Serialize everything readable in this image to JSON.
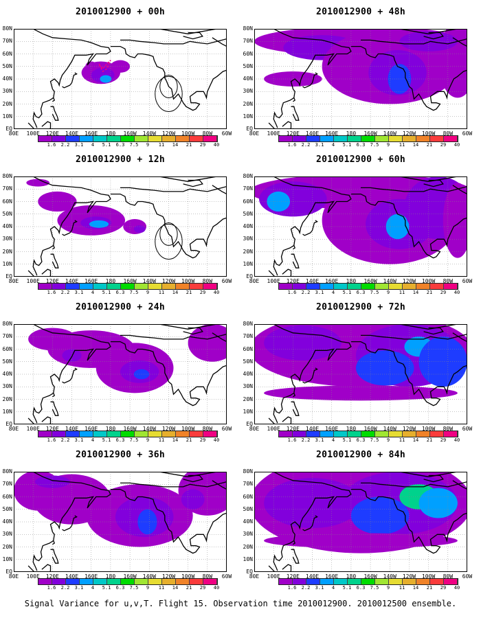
{
  "chart_data": [
    {
      "type": "heatmap",
      "title": "2010012900 + 00h",
      "lead_hours": 0
    },
    {
      "type": "heatmap",
      "title": "2010012900 + 48h",
      "lead_hours": 48
    },
    {
      "type": "heatmap",
      "title": "2010012900 + 12h",
      "lead_hours": 12
    },
    {
      "type": "heatmap",
      "title": "2010012900 + 60h",
      "lead_hours": 60
    },
    {
      "type": "heatmap",
      "title": "2010012900 + 24h",
      "lead_hours": 24
    },
    {
      "type": "heatmap",
      "title": "2010012900 + 72h",
      "lead_hours": 72
    },
    {
      "type": "heatmap",
      "title": "2010012900 + 36h",
      "lead_hours": 36
    },
    {
      "type": "heatmap",
      "title": "2010012900 + 84h",
      "lead_hours": 84
    }
  ],
  "axes": {
    "x_ticks": [
      "80E",
      "100E",
      "120E",
      "140E",
      "160E",
      "180",
      "160W",
      "140W",
      "120W",
      "100W",
      "80W",
      "60W"
    ],
    "y_ticks": [
      "EQ",
      "10N",
      "20N",
      "30N",
      "40N",
      "50N",
      "60N",
      "70N",
      "80N"
    ],
    "lon_range": [
      80,
      300
    ],
    "lat_range": [
      0,
      80
    ],
    "grid": true
  },
  "colorbar": {
    "levels": [
      "1.6",
      "2.2",
      "3.1",
      "4",
      "5.1",
      "6.3",
      "7.5",
      "9",
      "11",
      "14",
      "21",
      "29",
      "40"
    ],
    "colors": [
      "#a000c8",
      "#8200dc",
      "#1e3cff",
      "#00a0ff",
      "#00c8c8",
      "#00d28c",
      "#00dc00",
      "#a0e632",
      "#e6dc32",
      "#e6af2d",
      "#f08228",
      "#fa3c3c",
      "#f00082"
    ]
  },
  "caption": "Signal Variance for u,v,T. Flight 15. Observation time 2010012900. 2010012500 ensemble."
}
